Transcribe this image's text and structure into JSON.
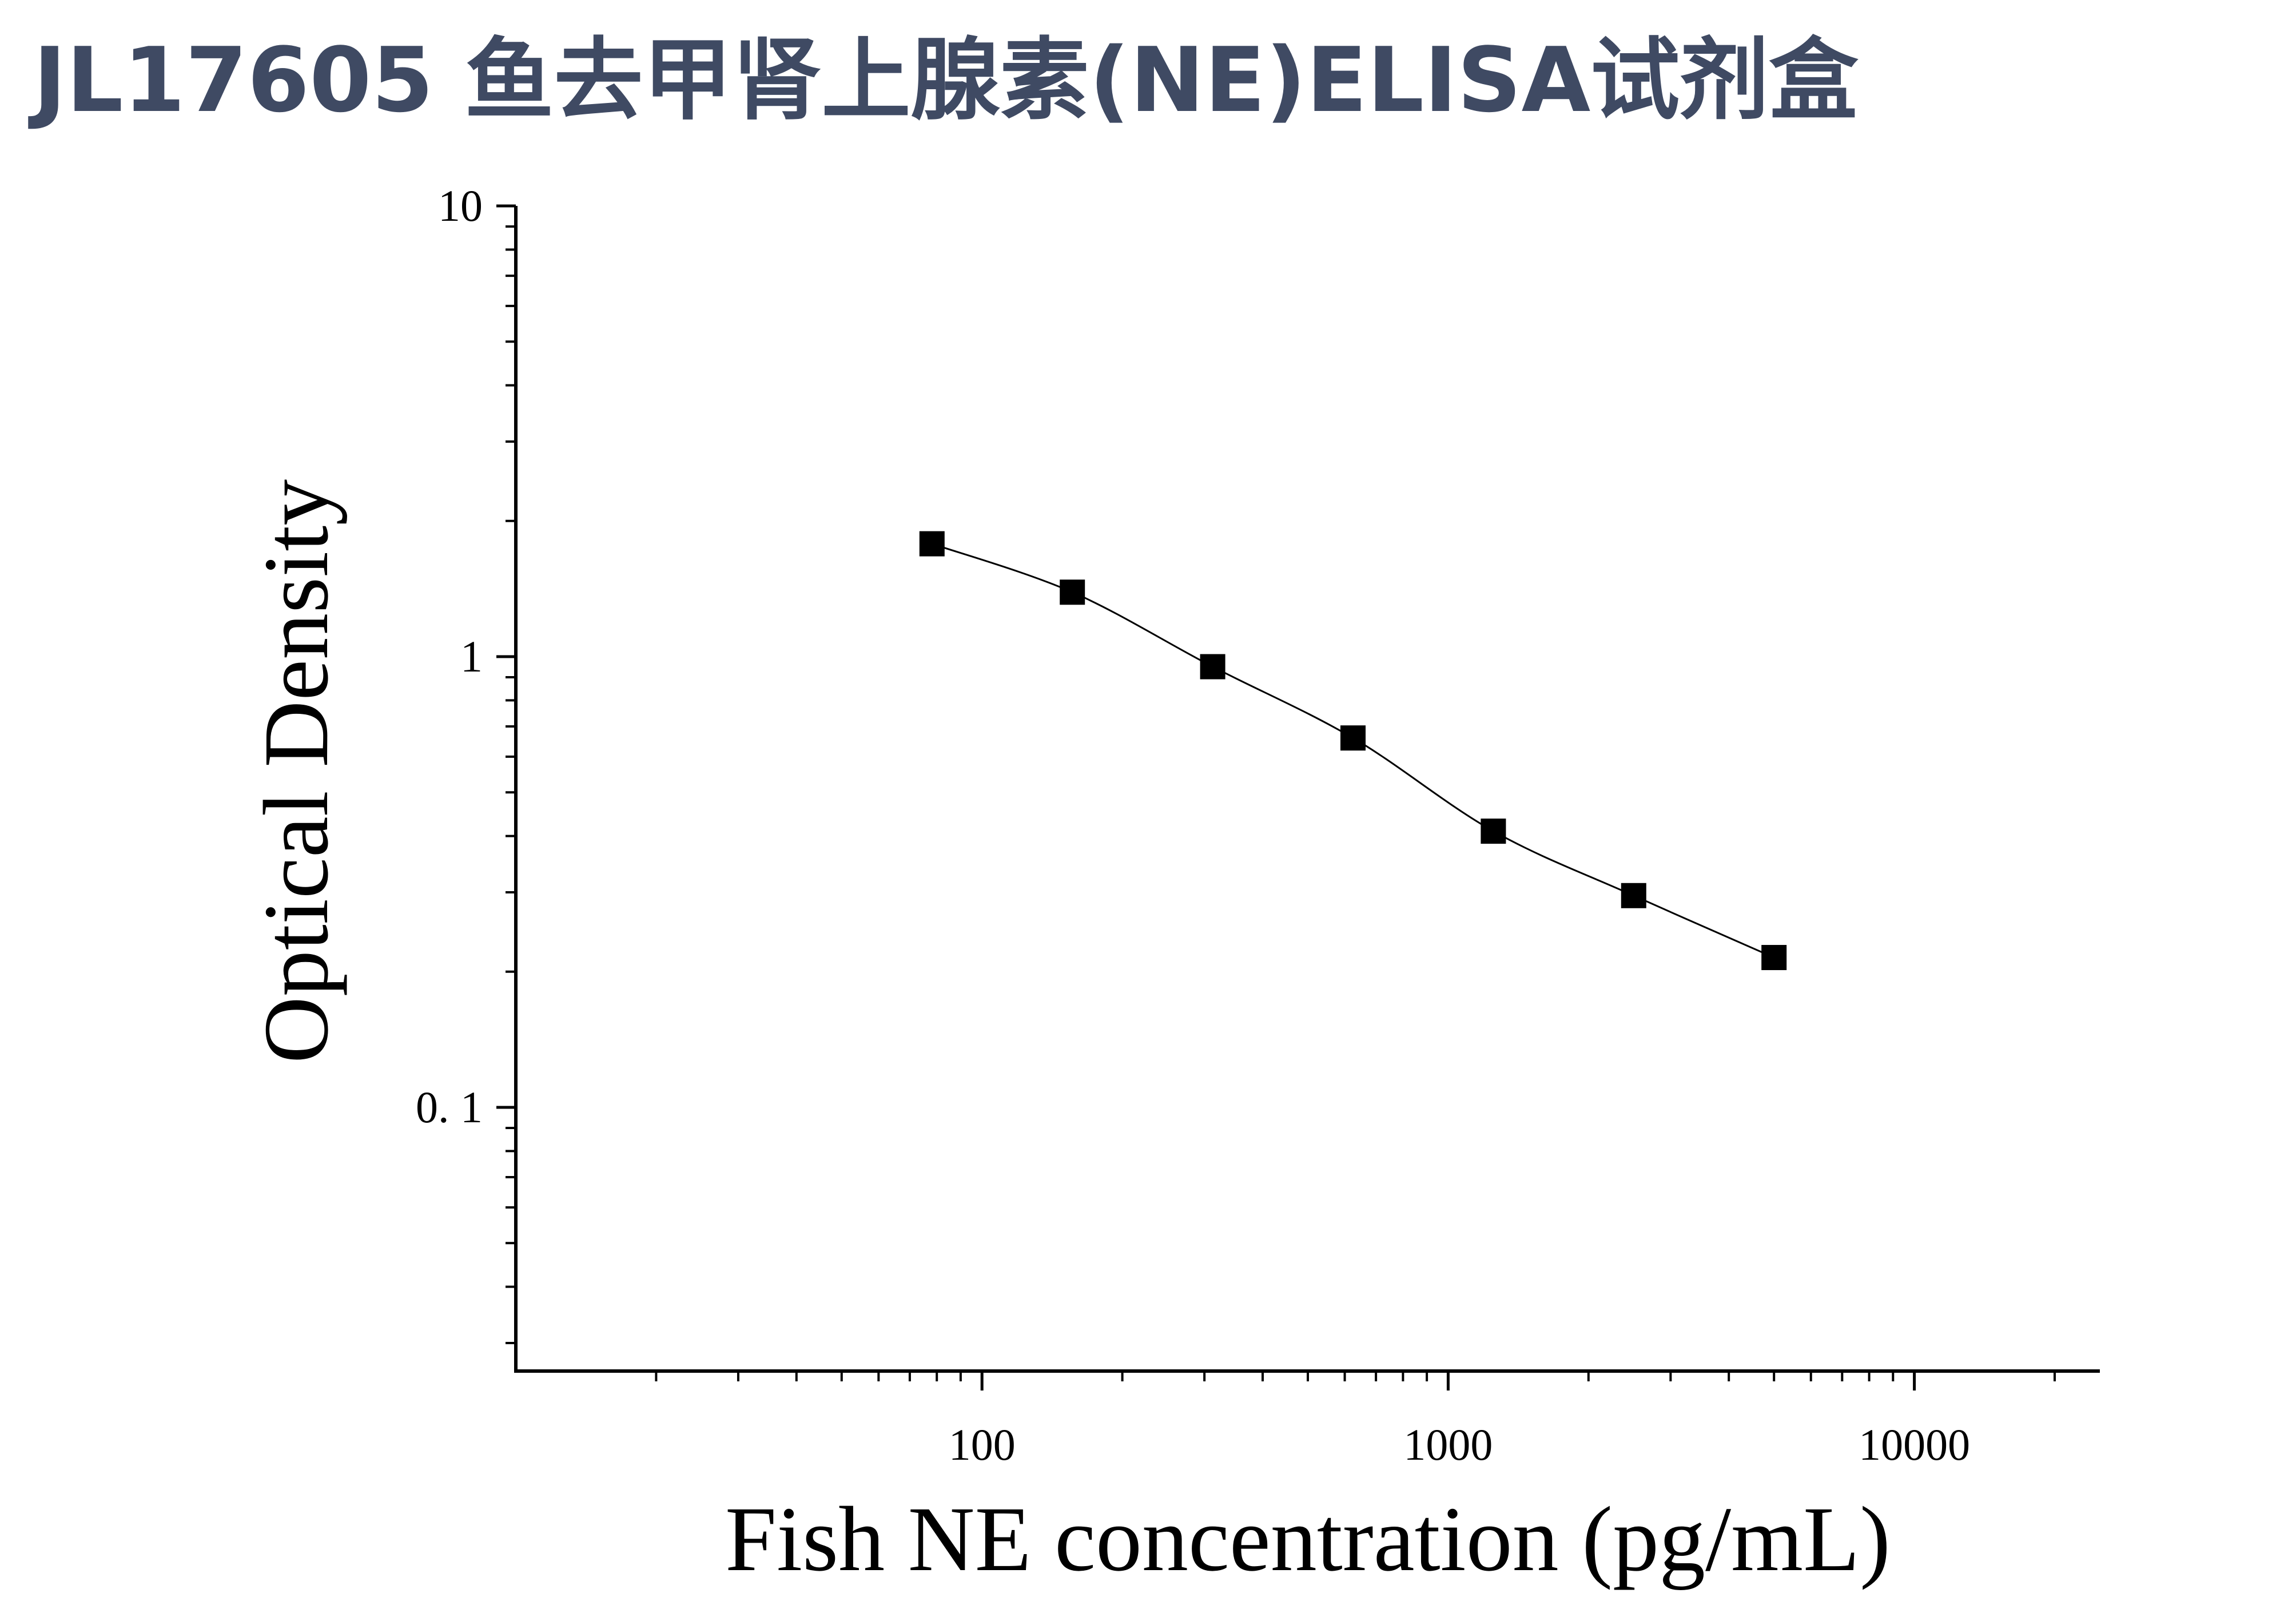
{
  "colors": {
    "title": "#3f4a63",
    "axis": "#000000",
    "marker": "#000000",
    "curve": "#000000"
  },
  "chart_data": {
    "type": "scatter",
    "title": "JL17605 鱼去甲肾上腺素(NE)ELISA试剂盒",
    "xlabel": "Fish NE concentration (pg/mL)",
    "ylabel": "Optical Density",
    "xscale": "log",
    "yscale": "log",
    "xlim": [
      10,
      25000
    ],
    "ylim": [
      0.026,
      10
    ],
    "x_tick_labels": [
      "100",
      "1000",
      "10000"
    ],
    "y_tick_labels": [
      "0. 1",
      "1",
      "10"
    ],
    "grid": false,
    "legend": "none",
    "marker": "square",
    "fit_curve": true,
    "series": [
      {
        "x": [
          78.125,
          156.25,
          312.5,
          625,
          1250,
          2500,
          5000
        ],
        "y": [
          1.78,
          1.39,
          0.95,
          0.66,
          0.41,
          0.295,
          0.215
        ]
      }
    ]
  }
}
